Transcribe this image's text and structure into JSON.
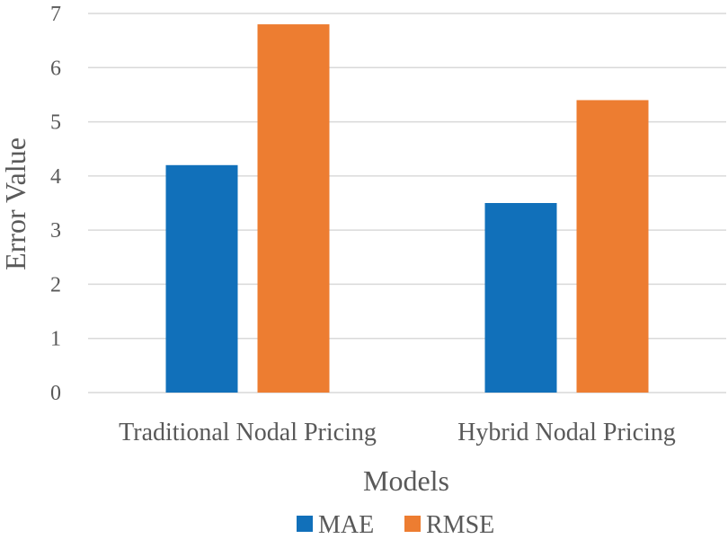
{
  "chart_data": {
    "type": "bar",
    "title": "",
    "xlabel": "Models",
    "ylabel": "Error Value",
    "categories": [
      "Traditional Nodal Pricing",
      "Hybrid Nodal Pricing"
    ],
    "series": [
      {
        "name": "MAE",
        "color": "#1170BA",
        "values": [
          4.2,
          3.5
        ]
      },
      {
        "name": "RMSE",
        "color": "#ED7D31",
        "values": [
          6.8,
          5.4
        ]
      }
    ],
    "ylim": [
      0,
      7
    ],
    "yticks": [
      "0",
      "1",
      "2",
      "3",
      "4",
      "5",
      "6",
      "7"
    ],
    "grid": true,
    "legend_position": "bottom"
  }
}
